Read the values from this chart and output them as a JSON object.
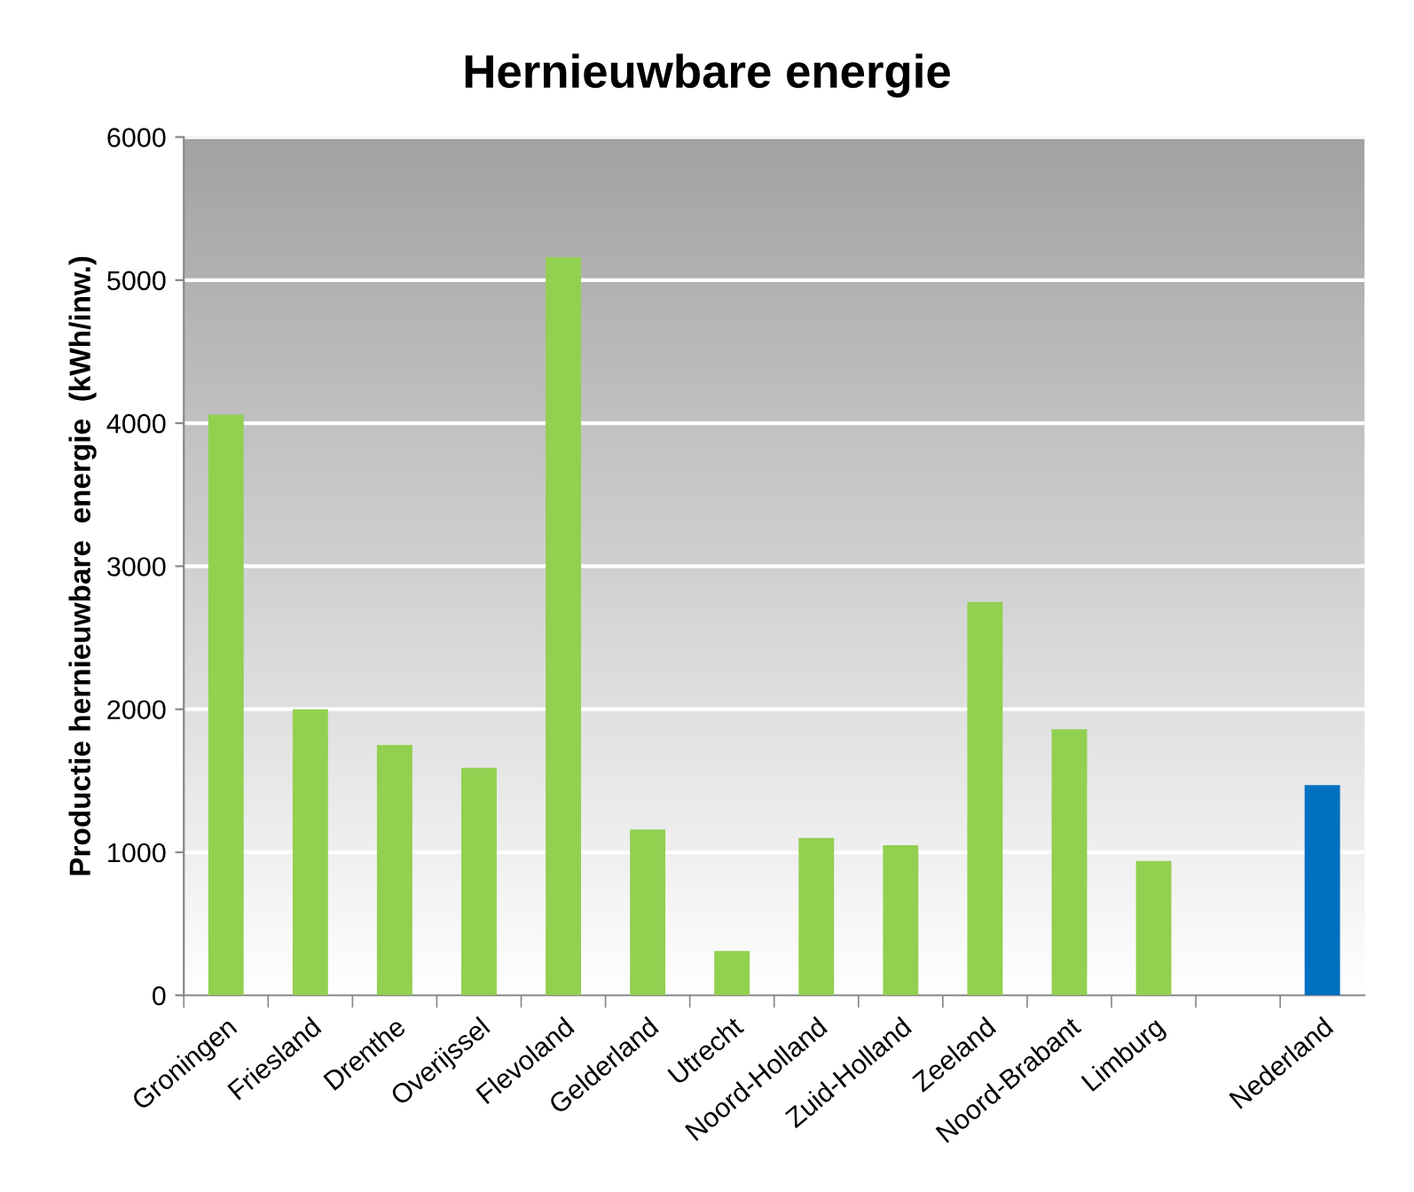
{
  "chart_data": {
    "type": "bar",
    "title": "Hernieuwbare energie",
    "ylabel": "Productie hernieuwbare  energie  (kWh/inw.)",
    "categories": [
      "Groningen",
      "Friesland",
      "Drenthe",
      "Overijssel",
      "Flevoland",
      "Gelderland",
      "Utrecht",
      "Noord-Holland",
      "Zuid-Holland",
      "Zeeland",
      "Noord-Brabant",
      "Limburg",
      null,
      "Nederland"
    ],
    "values": [
      4060,
      2000,
      1750,
      1590,
      5160,
      1160,
      310,
      1100,
      1050,
      2750,
      1860,
      940,
      null,
      1470
    ],
    "colors": [
      "#92d050",
      "#92d050",
      "#92d050",
      "#92d050",
      "#92d050",
      "#92d050",
      "#92d050",
      "#92d050",
      "#92d050",
      "#92d050",
      "#92d050",
      "#92d050",
      "#92d050",
      "#0070c0"
    ],
    "ylim": [
      0,
      6000
    ],
    "yticks": [
      0,
      1000,
      2000,
      3000,
      4000,
      5000,
      6000
    ],
    "grid": "y",
    "legend": false
  }
}
